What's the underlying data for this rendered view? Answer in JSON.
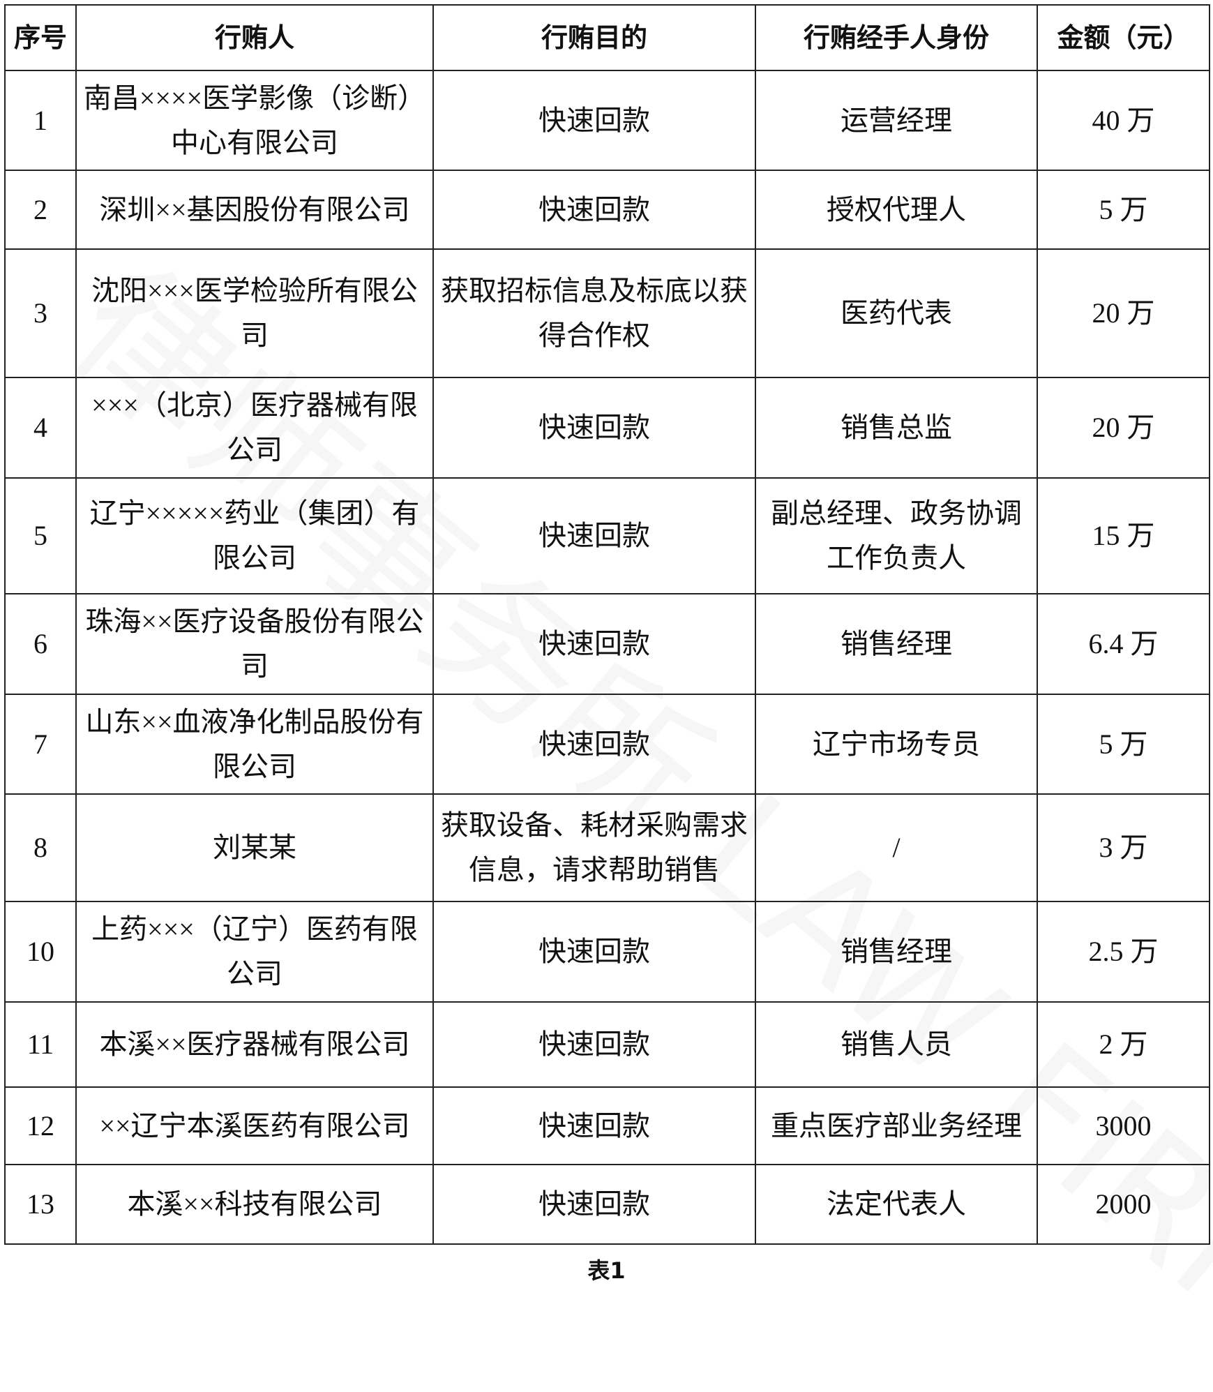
{
  "table": {
    "headers": [
      "序号",
      "行贿人",
      "行贿目的",
      "行贿经手人身份",
      "金额（元）"
    ],
    "rows": [
      {
        "no": "1",
        "briber": "南昌××××医学影像（诊断）中心有限公司",
        "purpose": "快速回款",
        "handler": "运营经理",
        "amount": "40 万"
      },
      {
        "no": "2",
        "briber": "深圳××基因股份有限公司",
        "purpose": "快速回款",
        "handler": "授权代理人",
        "amount": "5 万"
      },
      {
        "no": "3",
        "briber": "沈阳×××医学检验所有限公司",
        "purpose": "获取招标信息及标底以获得合作权",
        "handler": "医药代表",
        "amount": "20 万"
      },
      {
        "no": "4",
        "briber": "×××（北京）医疗器械有限公司",
        "purpose": "快速回款",
        "handler": "销售总监",
        "amount": "20 万"
      },
      {
        "no": "5",
        "briber": "辽宁×××××药业（集团）有限公司",
        "purpose": "快速回款",
        "handler": "副总经理、政务协调工作负责人",
        "amount": "15 万"
      },
      {
        "no": "6",
        "briber": "珠海××医疗设备股份有限公司",
        "purpose": "快速回款",
        "handler": "销售经理",
        "amount": "6.4 万"
      },
      {
        "no": "7",
        "briber": "山东××血液净化制品股份有限公司",
        "purpose": "快速回款",
        "handler": "辽宁市场专员",
        "amount": "5 万"
      },
      {
        "no": "8",
        "briber": "刘某某",
        "purpose": "获取设备、耗材采购需求信息，请求帮助销售",
        "handler": "/",
        "amount": "3 万"
      },
      {
        "no": "10",
        "briber": "上药×××（辽宁）医药有限公司",
        "purpose": "快速回款",
        "handler": "销售经理",
        "amount": "2.5 万"
      },
      {
        "no": "11",
        "briber": "本溪××医疗器械有限公司",
        "purpose": "快速回款",
        "handler": "销售人员",
        "amount": "2 万"
      },
      {
        "no": "12",
        "briber": "××辽宁本溪医药有限公司",
        "purpose": "快速回款",
        "handler": "重点医疗部业务经理",
        "amount": "3000"
      },
      {
        "no": "13",
        "briber": "本溪××科技有限公司",
        "purpose": "快速回款",
        "handler": "法定代表人",
        "amount": "2000"
      }
    ]
  },
  "caption": "表1",
  "watermark": "律师事务所 LAW FIRM"
}
